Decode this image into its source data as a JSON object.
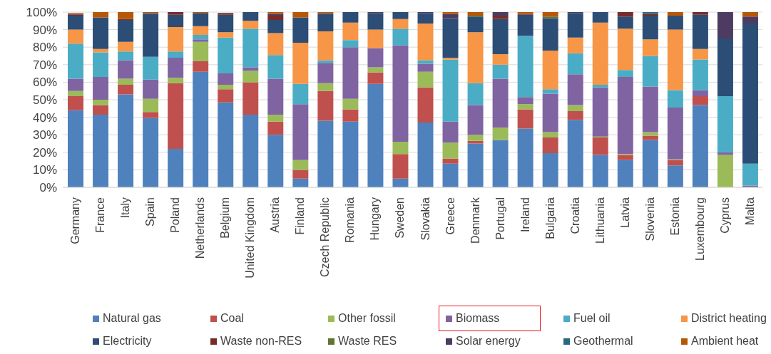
{
  "chart_data": {
    "type": "bar",
    "stacked": true,
    "categories": [
      "Germany",
      "France",
      "Italy",
      "Spain",
      "Poland",
      "Netherlands",
      "Belgium",
      "United Kingdom",
      "Austria",
      "Finland",
      "Czech Republic",
      "Romania",
      "Hungary",
      "Sweden",
      "Slovakia",
      "Greece",
      "Denmark",
      "Portugal",
      "Ireland",
      "Bulgaria",
      "Croatia",
      "Lithuania",
      "Latvia",
      "Slovenia",
      "Estonia",
      "Luxembourg",
      "Cyprus",
      "Malta"
    ],
    "series": [
      {
        "name": "Natural gas",
        "color": "#4f81bd",
        "values": [
          44,
          41.5,
          53,
          39.5,
          22,
          66,
          48.5,
          41.5,
          30,
          5,
          38,
          37.5,
          59,
          5,
          37,
          13.5,
          25,
          27,
          33.5,
          19.5,
          38.5,
          18.5,
          15.5,
          27,
          12.5,
          47,
          0,
          0
        ]
      },
      {
        "name": "Coal",
        "color": "#c0504d",
        "values": [
          8,
          5.5,
          5.5,
          3.5,
          37.5,
          6,
          7.5,
          18.5,
          7.5,
          5,
          17,
          7,
          6.5,
          14,
          20,
          3,
          1.5,
          0,
          11,
          9,
          5,
          10,
          3,
          2.5,
          3,
          5,
          0,
          0
        ]
      },
      {
        "name": "Other fossil",
        "color": "#9bbb59",
        "values": [
          3,
          3,
          3.5,
          7.5,
          3,
          11,
          2.5,
          6.5,
          4,
          5.5,
          4.5,
          6,
          3,
          7,
          9,
          9,
          3.5,
          7,
          3,
          3,
          3.5,
          0.5,
          0.5,
          2,
          0.5,
          0,
          18.5,
          0
        ]
      },
      {
        "name": "Biomass",
        "color": "#8064a2",
        "values": [
          7,
          13,
          10.5,
          11,
          11.5,
          1.5,
          6.5,
          2,
          20.5,
          32,
          11.5,
          29.5,
          11,
          55,
          4.5,
          12,
          17,
          28,
          4,
          22,
          17.5,
          28,
          44,
          26,
          29.5,
          3.5,
          1.5,
          1
        ]
      },
      {
        "name": "Fuel oil",
        "color": "#4bacc6",
        "values": [
          20,
          14,
          5,
          13,
          3.5,
          2.5,
          20.5,
          22,
          13.5,
          11.5,
          1.5,
          4,
          0,
          9.5,
          2,
          35.5,
          12.5,
          8,
          35,
          2.5,
          12,
          1.5,
          4,
          17.5,
          10,
          17.5,
          32,
          12.5
        ]
      },
      {
        "name": "District heating",
        "color": "#f79646",
        "values": [
          8,
          2,
          5.5,
          0,
          14,
          5,
          3,
          4.5,
          12.5,
          23.5,
          16.5,
          10,
          10.5,
          5.5,
          21,
          1,
          29,
          6,
          0,
          22,
          9,
          35.5,
          23.5,
          9.5,
          34.5,
          6,
          0,
          0
        ]
      },
      {
        "name": "Electricity",
        "color": "#2c4d75",
        "values": [
          8,
          18,
          12.5,
          24.5,
          7,
          7.5,
          10,
          5,
          7.5,
          14.5,
          10,
          6,
          9.5,
          4,
          6,
          22.5,
          9,
          20,
          12,
          18.5,
          14,
          6,
          7,
          13.5,
          8,
          19.5,
          33,
          80
        ]
      },
      {
        "name": "Waste non-RES",
        "color": "#772c2a",
        "values": [
          0.5,
          0,
          0.5,
          0,
          1.5,
          0,
          1,
          0,
          2.5,
          0,
          0.5,
          0,
          0,
          0,
          0,
          0,
          0,
          2,
          0.5,
          0,
          0,
          0,
          2.5,
          1,
          0,
          1.5,
          0,
          0
        ]
      },
      {
        "name": "Waste RES",
        "color": "#5f7530",
        "values": [
          0,
          0,
          0,
          0,
          0,
          0,
          0,
          0,
          0,
          0,
          0,
          0,
          0,
          0,
          0,
          0,
          0.5,
          0,
          0,
          1,
          0,
          0,
          0,
          0,
          0,
          0,
          0,
          0
        ]
      },
      {
        "name": "Solar energy",
        "color": "#4d3b62",
        "values": [
          0.5,
          0,
          0,
          0.5,
          0,
          0,
          0,
          0,
          1,
          0,
          0,
          0,
          0.5,
          0,
          0.5,
          2.5,
          0,
          2,
          0,
          0,
          0.5,
          0,
          0,
          0,
          0,
          0,
          15,
          4
        ]
      },
      {
        "name": "Geothermal",
        "color": "#276a7c",
        "values": [
          null,
          0,
          0,
          0,
          0,
          0,
          0,
          0,
          0,
          0,
          0,
          0,
          0,
          0,
          0,
          0,
          0,
          0,
          0,
          0,
          0,
          0,
          0,
          1,
          0,
          0,
          0,
          0
        ]
      },
      {
        "name": "Ambient heat",
        "color": "#b65708",
        "values": [
          0.5,
          3,
          4,
          0.5,
          0,
          0.5,
          0,
          0,
          1,
          3,
          0.5,
          0,
          0,
          0,
          0,
          1,
          2,
          0,
          1,
          2.5,
          0,
          0,
          0,
          0,
          2,
          0,
          0,
          2.5
        ]
      }
    ],
    "ylim": [
      0,
      100
    ],
    "yticks": [
      {
        "value": 0,
        "label": "0%"
      },
      {
        "value": 10,
        "label": "10%"
      },
      {
        "value": 20,
        "label": "20%"
      },
      {
        "value": 30,
        "label": "30%"
      },
      {
        "value": 40,
        "label": "40%"
      },
      {
        "value": 50,
        "label": "50%"
      },
      {
        "value": 60,
        "label": "60%"
      },
      {
        "value": 70,
        "label": "70%"
      },
      {
        "value": 80,
        "label": "80%"
      },
      {
        "value": 90,
        "label": "90%"
      },
      {
        "value": 100,
        "label": "100%"
      }
    ],
    "grid": "y",
    "legend": "bottom"
  }
}
